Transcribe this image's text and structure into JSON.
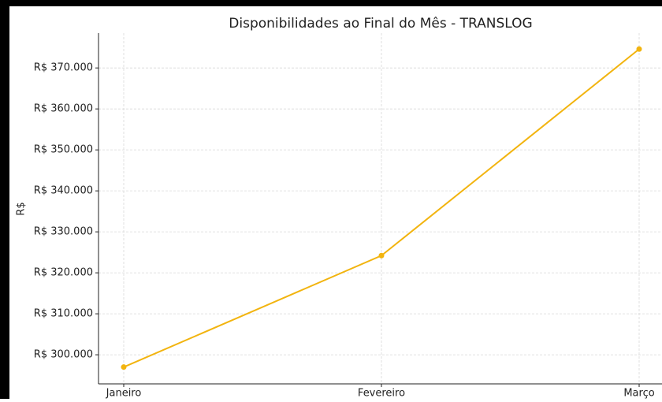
{
  "chart_data": {
    "type": "line",
    "title": "Disponibilidades ao Final do Mês - TRANSLOG",
    "y_label": "R$",
    "categories": [
      "Janeiro",
      "Fevereiro",
      "Março"
    ],
    "series": [
      {
        "name": "Disponibilidades",
        "color": "#f2b40f",
        "values": [
          297000,
          324200,
          374600
        ]
      }
    ],
    "ylim": [
      292900,
      378500
    ],
    "yticks": [
      {
        "value": 300000,
        "label": "R$ 300.000"
      },
      {
        "value": 310000,
        "label": "R$ 310.000"
      },
      {
        "value": 320000,
        "label": "R$ 320.000"
      },
      {
        "value": 330000,
        "label": "R$ 330.000"
      },
      {
        "value": 340000,
        "label": "R$ 340.000"
      },
      {
        "value": 350000,
        "label": "R$ 350.000"
      },
      {
        "value": 360000,
        "label": "R$ 360.000"
      },
      {
        "value": 370000,
        "label": "R$ 370.000"
      }
    ],
    "grid": true
  }
}
